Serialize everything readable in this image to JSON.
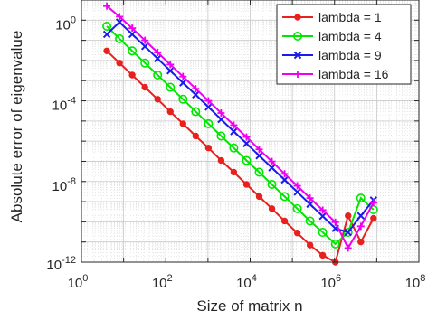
{
  "chart_data": {
    "type": "line",
    "xlabel": "Size of matrix n",
    "ylabel": "Absolute error of eigenvalue",
    "x_scale": "log",
    "y_scale": "log",
    "xlim": [
      1,
      100000000
    ],
    "ylim": [
      1e-12,
      10
    ],
    "grid": true,
    "minor_grid": true,
    "legend_position": "top-right",
    "x_ticks": [
      {
        "value": 1,
        "base": "10",
        "exp": "0"
      },
      {
        "value": 100,
        "base": "10",
        "exp": "2"
      },
      {
        "value": 10000,
        "base": "10",
        "exp": "4"
      },
      {
        "value": 1000000,
        "base": "10",
        "exp": "6"
      },
      {
        "value": 100000000,
        "base": "10",
        "exp": "8"
      }
    ],
    "y_ticks": [
      {
        "value": 1,
        "base": "10",
        "exp": "0"
      },
      {
        "value": 0.0001,
        "base": "10",
        "exp": "-4"
      },
      {
        "value": 1e-08,
        "base": "10",
        "exp": "-8"
      },
      {
        "value": 1e-12,
        "base": "10",
        "exp": "-12"
      }
    ],
    "series": [
      {
        "name": "lambda = 1",
        "color": "#e8201e",
        "marker": "dot",
        "x": [
          4,
          8,
          16,
          32,
          64,
          128,
          256,
          512,
          1024,
          2048,
          4096,
          8192,
          16384,
          32768,
          65536,
          131072,
          262144,
          524288,
          1048576,
          2097152,
          4194304,
          8388608
        ],
        "y": [
          0.03,
          0.0075,
          0.0019,
          0.00047,
          0.00012,
          2.9e-05,
          7.3e-06,
          1.8e-06,
          4.6e-07,
          1.1e-07,
          2.9e-08,
          7.2e-09,
          1.8e-09,
          4.5e-10,
          1.1e-10,
          2.8e-11,
          7e-12,
          2.2e-12,
          1e-12,
          2e-10,
          1e-11,
          1.5e-10
        ]
      },
      {
        "name": "lambda = 4",
        "color": "#00e600",
        "marker": "circle",
        "x": [
          4,
          8,
          16,
          32,
          64,
          128,
          256,
          512,
          1024,
          2048,
          4096,
          8192,
          16384,
          32768,
          65536,
          131072,
          262144,
          524288,
          1048576,
          2097152,
          4194304,
          8388608
        ],
        "y": [
          0.5,
          0.12,
          0.03,
          0.0075,
          0.0019,
          0.00047,
          0.00012,
          2.9e-05,
          7.3e-06,
          1.8e-06,
          4.6e-07,
          1.1e-07,
          2.9e-08,
          7.2e-09,
          1.8e-09,
          4.5e-10,
          1.1e-10,
          3e-11,
          8e-12,
          3e-11,
          1.5e-09,
          4e-10
        ]
      },
      {
        "name": "lambda = 9",
        "color": "#1a1aee",
        "marker": "x",
        "x": [
          4,
          8,
          16,
          32,
          64,
          128,
          256,
          512,
          1024,
          2048,
          4096,
          8192,
          16384,
          32768,
          65536,
          131072,
          262144,
          524288,
          1048576,
          2097152,
          4194304,
          8388608
        ],
        "y": [
          0.2,
          0.8,
          0.2,
          0.05,
          0.0125,
          0.0031,
          0.00078,
          0.0002,
          4.9e-05,
          1.2e-05,
          3e-06,
          7.6e-07,
          1.9e-07,
          4.8e-08,
          1.2e-08,
          3e-09,
          7.5e-10,
          1.9e-10,
          4.7e-11,
          3e-11,
          2e-10,
          1.2e-09
        ]
      },
      {
        "name": "lambda = 16",
        "color": "#f000f0",
        "marker": "plus",
        "x": [
          4,
          8,
          16,
          32,
          64,
          128,
          256,
          512,
          1024,
          2048,
          4096,
          8192,
          16384,
          32768,
          65536,
          131072,
          262144,
          524288,
          1048576,
          2097152,
          4194304,
          8388608
        ],
        "y": [
          5,
          1.5,
          0.4,
          0.1,
          0.025,
          0.0063,
          0.0016,
          0.0004,
          0.0001,
          2.5e-05,
          6.2e-06,
          1.6e-06,
          3.9e-07,
          9.8e-08,
          2.4e-08,
          6.1e-09,
          1.5e-09,
          3.8e-10,
          9.5e-11,
          5e-12,
          6e-11,
          9e-10
        ]
      }
    ]
  }
}
